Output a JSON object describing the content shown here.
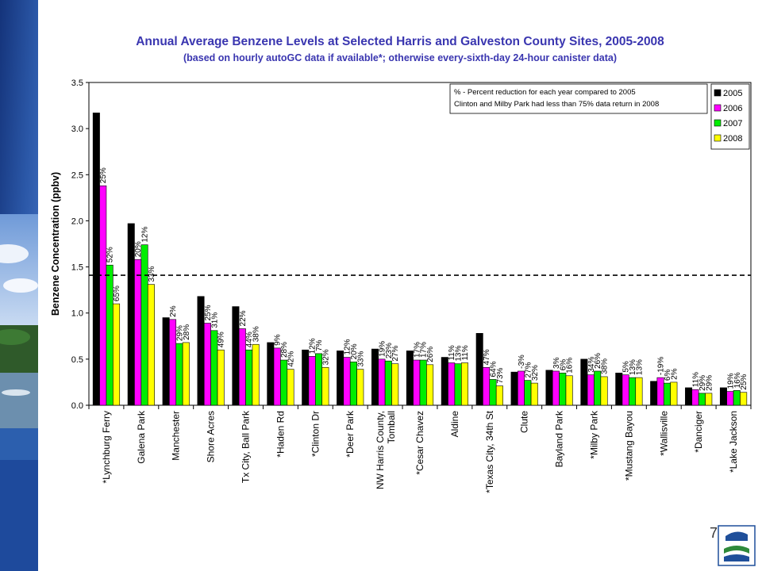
{
  "slide": {
    "page_number": "7",
    "colors": {
      "sidebar_dark": "#14337a",
      "sidebar_light": "#4a78c8",
      "title": "#3a36b0",
      "threshold": "#000000"
    }
  },
  "chart_data": {
    "type": "bar",
    "title": "Annual Average Benzene Levels at Selected Harris and Galveston County Sites, 2005-2008",
    "subtitle": "(based on hourly autoGC data if available*; otherwise every-sixth-day 24-hour canister data)",
    "xlabel": "",
    "ylabel": "Benzene Concentration (ppbv)",
    "ylim": [
      0,
      3.5
    ],
    "yticks": [
      "0.0",
      "0.5",
      "1.0",
      "1.5",
      "2.0",
      "2.5",
      "3.0",
      "3.5"
    ],
    "grid": false,
    "threshold": 1.41,
    "categories": [
      "*Lynchburg Ferry",
      "Galena Park",
      "Manchester",
      "Shore Acres",
      "Tx City, Ball Park",
      "*Haden Rd",
      "*Clinton Dr",
      "*Deer Park",
      "NW Harris County, Tomball",
      "*Cesar Chavez",
      "Aldine",
      "*Texas City, 34th St",
      "Clute",
      "Bayland Park",
      "*Milby Park",
      "*Mustang Bayou",
      "*Wallisville",
      "*Danciger",
      "*Lake Jackson"
    ],
    "series": [
      {
        "name": "2005",
        "color": "#000000",
        "values": [
          3.17,
          1.97,
          0.95,
          1.18,
          1.07,
          0.68,
          0.6,
          0.59,
          0.61,
          0.59,
          0.52,
          0.78,
          0.36,
          0.38,
          0.5,
          0.35,
          0.26,
          0.19,
          0.19
        ]
      },
      {
        "name": "2006",
        "color": "#ff00ff",
        "values": [
          2.38,
          1.58,
          0.93,
          0.89,
          0.83,
          0.62,
          0.53,
          0.52,
          0.5,
          0.49,
          0.46,
          0.41,
          0.37,
          0.37,
          0.33,
          0.33,
          0.3,
          0.17,
          0.15
        ]
      },
      {
        "name": "2007",
        "color": "#00ee00",
        "values": [
          1.52,
          1.74,
          0.67,
          0.81,
          0.6,
          0.49,
          0.56,
          0.47,
          0.48,
          0.49,
          0.45,
          0.28,
          0.27,
          0.35,
          0.37,
          0.3,
          0.24,
          0.13,
          0.16
        ]
      },
      {
        "name": "2008",
        "color": "#ffff00",
        "values": [
          1.1,
          1.31,
          0.68,
          0.6,
          0.66,
          0.39,
          0.41,
          0.39,
          0.45,
          0.44,
          0.46,
          0.21,
          0.24,
          0.32,
          0.31,
          0.3,
          0.25,
          0.13,
          0.14
        ]
      }
    ],
    "labels": [
      [
        "25%",
        "52%",
        "65%"
      ],
      [
        "20%",
        "12%",
        "33%"
      ],
      [
        "2%",
        "29%",
        "28%"
      ],
      [
        "25%",
        "31%",
        "49%"
      ],
      [
        "22%",
        "44%",
        "38%"
      ],
      [
        "9%",
        "28%",
        "42%"
      ],
      [
        "12%",
        "7%",
        "32%"
      ],
      [
        "12%",
        "20%",
        "33%"
      ],
      [
        "19%",
        "23%",
        "27%"
      ],
      [
        "17%",
        "17%",
        "26%"
      ],
      [
        "11%",
        "13%",
        "11%"
      ],
      [
        "47%",
        "64%",
        "73%"
      ],
      [
        "-3%",
        "27%",
        "32%"
      ],
      [
        "3%",
        "6%",
        "16%"
      ],
      [
        "34%",
        "26%",
        "38%"
      ],
      [
        "5%",
        "13%",
        "13%"
      ],
      [
        "-19%",
        "6%",
        "2%"
      ],
      [
        "11%",
        "29%",
        "29%"
      ],
      [
        "19%",
        "16%",
        "25%"
      ]
    ],
    "legend": {
      "placement": "top-right"
    },
    "annotation": [
      "% - Percent reduction for each year compared to 2005",
      "Clinton and Milby Park had less than 75% data return in 2008"
    ]
  }
}
